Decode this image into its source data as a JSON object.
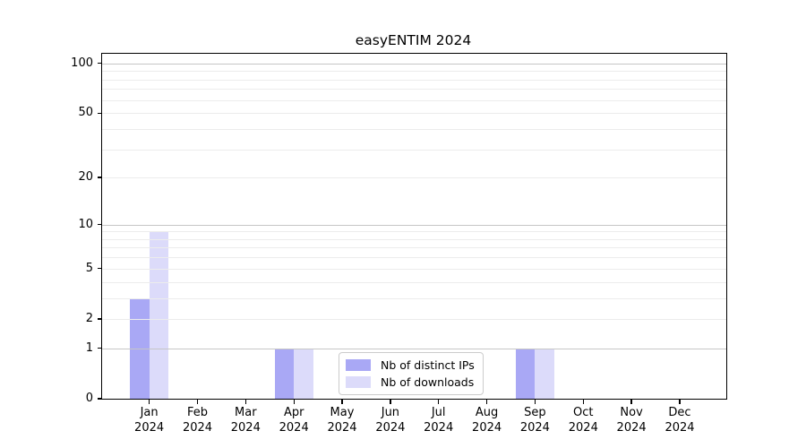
{
  "title": "easyENTIM 2024",
  "chart_data": {
    "type": "bar",
    "title": "easyENTIM 2024",
    "categories": [
      "Jan 2024",
      "Feb 2024",
      "Mar 2024",
      "Apr 2024",
      "May 2024",
      "Jun 2024",
      "Jul 2024",
      "Aug 2024",
      "Sep 2024",
      "Oct 2024",
      "Nov 2024",
      "Dec 2024"
    ],
    "series": [
      {
        "name": "Nb of distinct IPs",
        "color": "#a9a8f5",
        "values": [
          3,
          0,
          0,
          1,
          0,
          0,
          0,
          0,
          1,
          0,
          0,
          0
        ]
      },
      {
        "name": "Nb of downloads",
        "color": "#dcdbfa",
        "values": [
          9,
          0,
          0,
          1,
          0,
          0,
          0,
          0,
          1,
          0,
          0,
          0
        ]
      }
    ],
    "yscale": "log1p",
    "ylim": [
      0,
      112
    ],
    "y_ticks": [
      0,
      1,
      2,
      5,
      10,
      20,
      50,
      100
    ],
    "y_minor_gridlines": [
      3,
      4,
      6,
      7,
      8,
      9,
      30,
      40,
      60,
      70,
      80,
      90
    ],
    "y_major_gridlines": [
      1,
      10,
      100
    ],
    "grid": true,
    "legend_position": "lower center",
    "colors": {
      "major_grid": "#c6c6c6",
      "minor_grid": "#ececec",
      "axis": "#000000",
      "legend_border": "#cccccc"
    }
  }
}
